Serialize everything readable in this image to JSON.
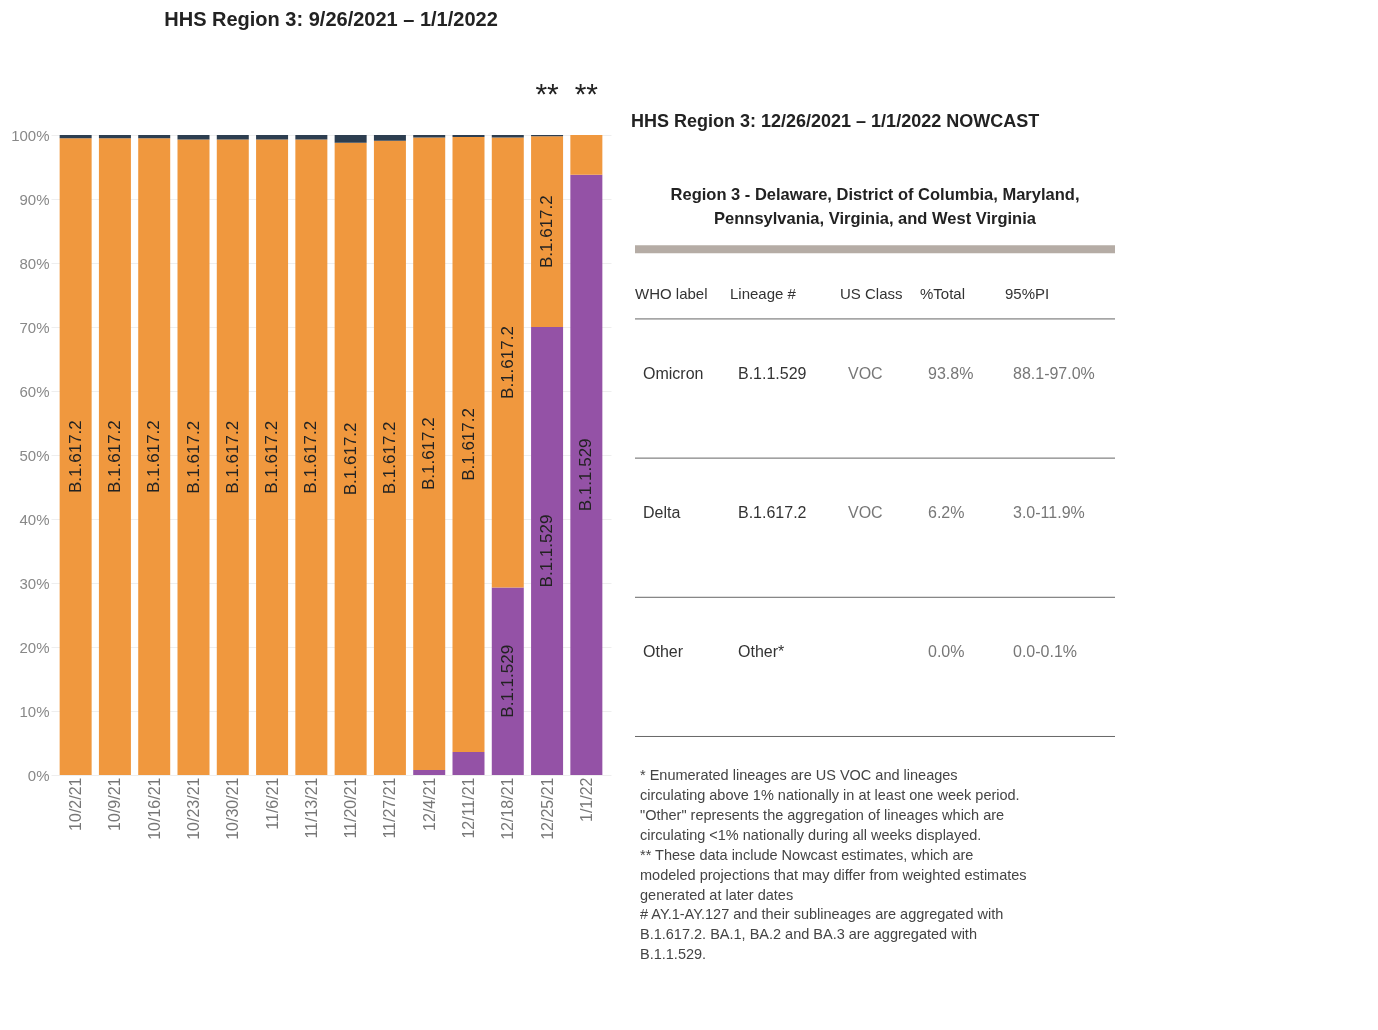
{
  "chart_data": [
    {
      "type": "bar",
      "title": "HHS Region 3: 9/26/2021 – 1/1/2022",
      "stacked": true,
      "grid": "y",
      "categories": [
        "10/2/21",
        "10/9/21",
        "10/16/21",
        "10/23/21",
        "10/30/21",
        "11/6/21",
        "11/13/21",
        "11/20/21",
        "11/27/21",
        "12/4/21",
        "12/11/21",
        "12/18/21",
        "12/25/21",
        "1/1/22"
      ],
      "series": [
        {
          "name": "B.1.1.529",
          "color": "#9452a6",
          "values": [
            0,
            0,
            0,
            0,
            0,
            0,
            0,
            0,
            0,
            0.8,
            3.6,
            29.3,
            70,
            93.8
          ]
        },
        {
          "name": "B.1.617.2",
          "color": "#f0983e",
          "values": [
            99.5,
            99.5,
            99.5,
            99.3,
            99.3,
            99.3,
            99.3,
            98.8,
            99.1,
            98.8,
            96.1,
            70.3,
            29.8,
            6.2
          ]
        },
        {
          "color": "#2d3e50",
          "values": [
            0.5,
            0.5,
            0.5,
            0.7,
            0.7,
            0.7,
            0.7,
            1.2,
            0.9,
            0.4,
            0.3,
            0.4,
            0.2,
            0
          ]
        }
      ],
      "ylim": [
        0,
        100
      ],
      "yticks": [
        {
          "value": 0,
          "label": "0%"
        },
        {
          "value": 10,
          "label": "10%"
        },
        {
          "value": 20,
          "label": "20%"
        },
        {
          "value": 30,
          "label": "30%"
        },
        {
          "value": 40,
          "label": "40%"
        },
        {
          "value": 50,
          "label": "50%"
        },
        {
          "value": 60,
          "label": "60%"
        },
        {
          "value": 70,
          "label": "70%"
        },
        {
          "value": 80,
          "label": "80%"
        },
        {
          "value": 90,
          "label": "90%"
        },
        {
          "value": 100,
          "label": "100%"
        }
      ],
      "annotations": [
        "**",
        "**"
      ]
    },
    {
      "type": "other",
      "title": "HHS Region 3: 12/26/2021 – 1/1/2022 NOWCAST",
      "subtitle": "Region 3 - Delaware, District of Columbia, Maryland, Pennsylvania, Virginia, and West Virginia",
      "annotations": [
        "WHO label\tLineage #\tUS Class\t%Total\t95%PI",
        "Omicron\tB.1.1.529\tVOC\t93.8%\t88.1-97.0%",
        "Delta\tB.1.617.2\tVOC\t6.2%\t3.0-11.9%",
        "Other\tOther*\t\t0.0%\t0.0-0.1%",
        "*      Enumerated lineages are US VOC and lineages circulating above 1% nationally in at least one week period. \"Other\" represents the aggregation of lineages which are circulating <1% nationally during all weeks displayed.",
        "**     These data include Nowcast estimates, which are modeled projections that may differ from weighted estimates generated at later dates",
        "#      AY.1-AY.127 and their sublineages are aggregated with B.1.617.2. BA.1, BA.2 and BA.3 are aggregated with B.1.1.529."
      ]
    }
  ]
}
